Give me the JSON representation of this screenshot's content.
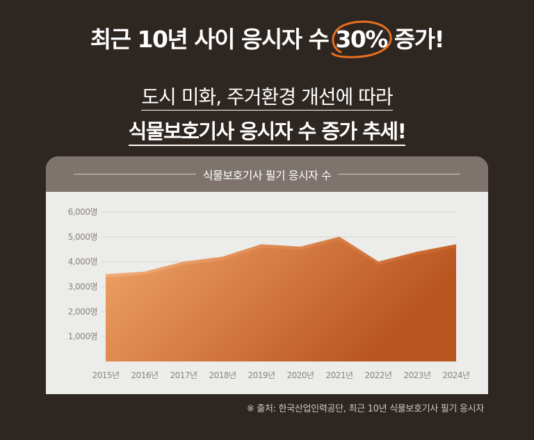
{
  "headline": {
    "before": "최근 10년 사이 응시자 수",
    "highlight": "30%",
    "after": "증가!"
  },
  "subheadline_1": "도시 미화, 주거환경 개선에 따라",
  "subheadline_2": "식물보호기사 응시자 수 증가 추세!",
  "chart_title": "식물보호기사 필기 응시자 수",
  "source_note": "※ 출처: 한국산업인력공단, 최근 10년 식물보호기사 필기  응시자",
  "colors": {
    "background": "#2e2621",
    "accent_circle": "#e8701f",
    "area_light": "#f0a468",
    "area_dark": "#b8541e",
    "card": "#ececea",
    "card_header": "#7e746d"
  },
  "chart_data": {
    "type": "area",
    "title": "식물보호기사 필기 응시자 수",
    "categories": [
      "2015년",
      "2016년",
      "2017년",
      "2018년",
      "2019년",
      "2020년",
      "2021년",
      "2022년",
      "2023년",
      "2024년"
    ],
    "values": [
      3500,
      3600,
      4000,
      4200,
      4700,
      4600,
      5000,
      4000,
      4400,
      4700
    ],
    "y_ticks": [
      1000,
      2000,
      3000,
      4000,
      5000,
      6000
    ],
    "y_tick_labels": [
      "1,000명",
      "2,000명",
      "3,000명",
      "4,000명",
      "5,000명",
      "6,000명"
    ],
    "ylim": [
      0,
      6000
    ],
    "grid": true,
    "legend": "none"
  }
}
